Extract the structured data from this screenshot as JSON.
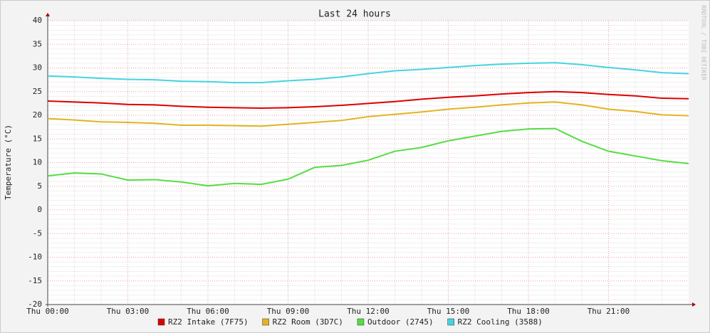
{
  "chart_data": {
    "type": "line",
    "title": "Last 24 hours",
    "y_label": "Temperature (°C)",
    "watermark": "RRDTOOL / TOBI OETIKER",
    "x": [
      0,
      1,
      2,
      3,
      4,
      5,
      6,
      7,
      8,
      9,
      10,
      11,
      12,
      13,
      14,
      15,
      16,
      17,
      18,
      19,
      20,
      21,
      22,
      23,
      24
    ],
    "xlim": [
      0,
      24
    ],
    "xticks": [
      {
        "value": 0,
        "label": "Thu 00:00"
      },
      {
        "value": 3,
        "label": "Thu 03:00"
      },
      {
        "value": 6,
        "label": "Thu 06:00"
      },
      {
        "value": 9,
        "label": "Thu 09:00"
      },
      {
        "value": 12,
        "label": "Thu 12:00"
      },
      {
        "value": 15,
        "label": "Thu 15:00"
      },
      {
        "value": 18,
        "label": "Thu 18:00"
      },
      {
        "value": 21,
        "label": "Thu 21:00"
      }
    ],
    "ylim": [
      -20,
      40
    ],
    "yticks": [
      -20,
      -15,
      -10,
      -5,
      0,
      5,
      10,
      15,
      20,
      25,
      30,
      35,
      40
    ],
    "grid": true,
    "series": [
      {
        "name": "RZ2 Intake (7F75)",
        "color": "#dd0000",
        "values": [
          23,
          22.8,
          22.6,
          22.3,
          22.2,
          21.9,
          21.7,
          21.6,
          21.5,
          21.6,
          21.8,
          22.1,
          22.5,
          22.9,
          23.4,
          23.8,
          24.1,
          24.5,
          24.8,
          25,
          24.8,
          24.4,
          24.1,
          23.6,
          23.5
        ]
      },
      {
        "name": "RZ2 Room (3D7C)",
        "color": "#e2b422",
        "values": [
          19.3,
          19,
          18.6,
          18.5,
          18.3,
          17.9,
          17.9,
          17.8,
          17.7,
          18.1,
          18.5,
          18.9,
          19.7,
          20.2,
          20.7,
          21.3,
          21.7,
          22.2,
          22.6,
          22.8,
          22.2,
          21.3,
          20.8,
          20.1,
          19.9
        ]
      },
      {
        "name": "Outdoor (2745)",
        "color": "#55dd44",
        "values": [
          7.2,
          7.8,
          7.6,
          6.3,
          6.4,
          5.9,
          5.1,
          5.6,
          5.4,
          6.5,
          9,
          9.4,
          10.5,
          12.4,
          13.2,
          14.6,
          15.6,
          16.6,
          17.1,
          17.2,
          14.5,
          12.4,
          11.4,
          10.4,
          9.8
        ]
      },
      {
        "name": "RZ2 Cooling (3588)",
        "color": "#44d4e0",
        "values": [
          28.3,
          28.1,
          27.8,
          27.6,
          27.5,
          27.2,
          27.1,
          26.9,
          26.9,
          27.3,
          27.6,
          28.1,
          28.8,
          29.4,
          29.7,
          30.1,
          30.5,
          30.8,
          31,
          31.1,
          30.7,
          30.1,
          29.6,
          29,
          28.8
        ]
      }
    ]
  }
}
